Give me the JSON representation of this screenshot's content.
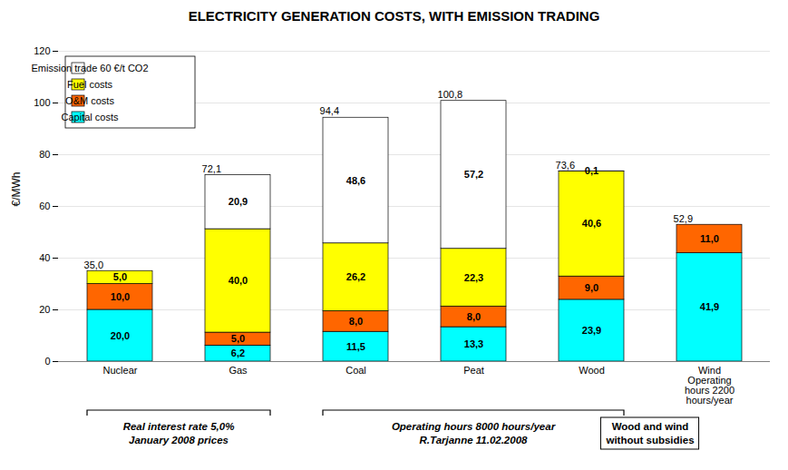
{
  "chart_data": {
    "type": "bar",
    "stacked": true,
    "title": "ELECTRICITY GENERATION COSTS, WITH EMISSION TRADING",
    "ylabel": "€/MWh",
    "categories": [
      "Nuclear",
      "Gas",
      "Coal",
      "Peat",
      "Wood",
      "Wind\nOperating\nhours 2200\nhours/year"
    ],
    "series": [
      {
        "name": "Capital costs",
        "color": "#00FFFF",
        "values": [
          20.0,
          6.2,
          11.5,
          13.3,
          23.9,
          41.9
        ],
        "value_labels": [
          "20,0",
          "6,2",
          "11,5",
          "13,3",
          "23,9",
          "41,9"
        ]
      },
      {
        "name": "O&M costs",
        "color": "#FF6600",
        "values": [
          10.0,
          5.0,
          8.0,
          8.0,
          9.0,
          11.0
        ],
        "value_labels": [
          "10,0",
          "5,0",
          "8,0",
          "8,0",
          "9,0",
          "11,0"
        ]
      },
      {
        "name": "Fuel costs",
        "color": "#FFFF00",
        "values": [
          5.0,
          40.0,
          26.2,
          22.3,
          40.6,
          0.0
        ],
        "value_labels": [
          "5,0",
          "40,0",
          "26,2",
          "22,3",
          "40,6",
          null
        ]
      },
      {
        "name": "Emission trade 60 €/t CO2",
        "color": "#FFFFFF",
        "values": [
          0.0,
          20.9,
          48.6,
          57.2,
          0.1,
          0.0
        ],
        "value_labels": [
          null,
          "20,9",
          "48,6",
          "57,2",
          "0,1",
          null
        ]
      }
    ],
    "totals": [
      35.0,
      72.1,
      94.4,
      100.8,
      73.6,
      52.9
    ],
    "total_labels": [
      "35,0",
      "72,1",
      "94,4",
      "100,8",
      "73,6",
      "52,9"
    ],
    "data_labels": true,
    "ylim": [
      0,
      120
    ],
    "yticks": [
      0,
      20,
      40,
      60,
      80,
      100,
      120
    ],
    "grid": true,
    "legend": "upper left",
    "annotations": [
      {
        "span": [
          "Nuclear",
          "Gas"
        ],
        "lines": [
          "Real interest rate 5,0%",
          "January 2008 prices"
        ]
      },
      {
        "span": [
          "Coal",
          "Wood"
        ],
        "lines": [
          "Operating hours 8000 hours/year",
          "R.Tarjanne 11.02.2008"
        ]
      }
    ],
    "note": "Wood and wind\nwithout subsidies"
  }
}
